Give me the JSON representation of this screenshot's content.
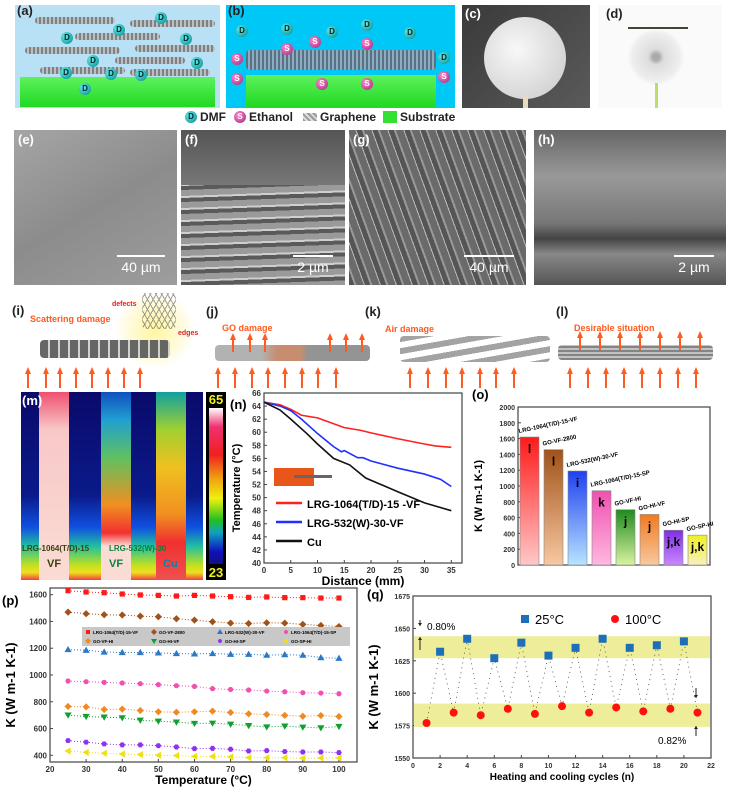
{
  "panel_labels": {
    "a": "(a)",
    "b": "(b)",
    "c": "(c)",
    "d": "(d)",
    "e": "(e)",
    "f": "(f)",
    "g": "(g)",
    "h": "(h)",
    "i": "(i)",
    "j": "(j)",
    "k": "(k)",
    "l": "(l)",
    "m": "(m)",
    "n": "(n)",
    "o": "(o)",
    "p": "(p)",
    "q": "(q)"
  },
  "legend_ab": {
    "dmf": "DMF",
    "ethanol": "Ethanol",
    "graphene": "Graphene",
    "substrate": "Substrate",
    "dmf_symbol": "D",
    "ethanol_symbol": "S"
  },
  "colors": {
    "dmf": "#11a5a5",
    "ethanol": "#c0308c",
    "substrate": "#33e033",
    "arrow": "#ff5a1f"
  },
  "scale_bars": {
    "e": "40 µm",
    "f": "2 µm",
    "g": "40 µm",
    "h": "2 µm"
  },
  "schematics": {
    "i": {
      "title": "Scattering damage",
      "defects": "defects",
      "edges": "edges"
    },
    "j": {
      "title": "GO damage"
    },
    "k": {
      "title": "Air damage"
    },
    "l": {
      "title": "Desirable situation"
    }
  },
  "thermal": {
    "max": "65",
    "min": "23",
    "colorbar_label": "Temperature (°C)",
    "sample1_line1": "LRG-1064(T/D)-15",
    "sample1_line2": "VF",
    "sample2_line1": "LRG-532(W)-30",
    "sample2_line2": "VF",
    "sample3": "Cu"
  },
  "chart_data": [
    {
      "id": "n",
      "type": "line",
      "xlabel": "Distance (mm)",
      "ylabel": "Temperature (°C)",
      "xlim": [
        0,
        37
      ],
      "ylim": [
        40,
        66
      ],
      "xticks": [
        0,
        5,
        10,
        15,
        20,
        25,
        30,
        35
      ],
      "yticks": [
        40,
        42,
        44,
        46,
        48,
        50,
        52,
        54,
        56,
        58,
        60,
        62,
        64,
        66
      ],
      "legend_position": "bottom-left",
      "series": [
        {
          "name": "LRG-1064(T/D)-15 -VF",
          "color": "#ff2020",
          "x": [
            0,
            3,
            5,
            7,
            10,
            15,
            18,
            20,
            25,
            30,
            32,
            35
          ],
          "y": [
            64.6,
            64.2,
            63.5,
            62.6,
            62.2,
            60.7,
            60.3,
            59.9,
            59,
            58.2,
            57.9,
            57.7
          ]
        },
        {
          "name": "LRG-532(W)-30-VF",
          "color": "#2030ff",
          "x": [
            0,
            3,
            5,
            7,
            10,
            13,
            14.5,
            15,
            17.5,
            18.5,
            20,
            25,
            30,
            33,
            35
          ],
          "y": [
            64.6,
            64,
            63.3,
            62,
            59.8,
            57.8,
            57,
            57.2,
            56.1,
            56.1,
            55.6,
            54.5,
            53.6,
            52.8,
            51.7
          ]
        },
        {
          "name": "Cu",
          "color": "#111111",
          "x": [
            0,
            3,
            5,
            8,
            10,
            13,
            16,
            19,
            25,
            30,
            35
          ],
          "y": [
            64.6,
            63.4,
            62,
            59.8,
            58.2,
            56,
            55,
            53,
            50.9,
            49.2,
            48
          ]
        }
      ]
    },
    {
      "id": "o",
      "type": "bar",
      "ylabel": "K (W m-1 K-1)",
      "ylim": [
        0,
        2000
      ],
      "yticks": [
        0,
        200,
        400,
        600,
        800,
        1000,
        1200,
        1400,
        1600,
        1800,
        2000
      ],
      "categories": [
        "LRG-1064(T/D)-15-VF",
        "GO-VF-2800",
        "LRG-532(W)-30-VF",
        "LRG-1064(T/D)-15-SP",
        "GO-VF-HI",
        "GO-HI-VF",
        "GO-HI-SP",
        "GO-SP-HI"
      ],
      "values": [
        1620,
        1460,
        1190,
        940,
        700,
        640,
        440,
        378
      ],
      "letters": [
        "l",
        "l",
        "i",
        "k",
        "j",
        "j",
        "j,k",
        "j,k"
      ],
      "colors": [
        "#ff1a1a",
        "#a0521a",
        "#2040f0",
        "#f050b0",
        "#208a20",
        "#f07a20",
        "#8030e0",
        "#f0f020"
      ],
      "light_colors": [
        "#ffc8c8",
        "#f8c8a0",
        "#b8e4ff",
        "#ffb8e0",
        "#d8f4a0",
        "#f8c8a0",
        "#c888ff",
        "#f8f0c0"
      ]
    },
    {
      "id": "p",
      "type": "scatter",
      "xlabel": "Temperature (°C)",
      "ylabel": "K (W m-1 K-1)",
      "xlim": [
        20,
        105
      ],
      "ylim": [
        350,
        1650
      ],
      "xticks": [
        20,
        30,
        40,
        50,
        60,
        70,
        80,
        90,
        100
      ],
      "yticks": [
        400,
        600,
        800,
        1000,
        1200,
        1400,
        1600
      ],
      "legend_position": "center",
      "x": [
        25,
        30,
        35,
        40,
        45,
        50,
        55,
        60,
        65,
        70,
        75,
        80,
        85,
        90,
        95,
        100
      ],
      "series": [
        {
          "name": "LRG-1064(T/D)-15-VF",
          "color": "#ff1a1a",
          "marker": "square",
          "values": [
            1630,
            1620,
            1615,
            1605,
            1598,
            1595,
            1590,
            1595,
            1590,
            1585,
            1580,
            1583,
            1578,
            1578,
            1575,
            1575
          ]
        },
        {
          "name": "GO-VF-2800",
          "color": "#a0521a",
          "marker": "diamond",
          "values": [
            1470,
            1458,
            1450,
            1448,
            1440,
            1435,
            1420,
            1410,
            1398,
            1388,
            1385,
            1390,
            1388,
            1378,
            1370,
            1362
          ]
        },
        {
          "name": "LRG-532(W)-30-VF",
          "color": "#2a78c8",
          "marker": "triangle-up",
          "values": [
            1190,
            1185,
            1172,
            1168,
            1168,
            1165,
            1160,
            1158,
            1160,
            1155,
            1155,
            1148,
            1152,
            1148,
            1130,
            1125
          ]
        },
        {
          "name": "LRG-1064(T/D)-15-SP",
          "color": "#f050b0",
          "marker": "circle",
          "values": [
            955,
            950,
            945,
            940,
            935,
            928,
            920,
            915,
            898,
            892,
            888,
            880,
            875,
            868,
            865,
            860
          ]
        },
        {
          "name": "GO-VF-HI",
          "color": "#f08a20",
          "marker": "diamond",
          "values": [
            765,
            762,
            742,
            745,
            735,
            725,
            722,
            725,
            730,
            720,
            710,
            705,
            698,
            692,
            697,
            690
          ]
        },
        {
          "name": "GO-HI-VF",
          "color": "#10a030",
          "marker": "triangle-down",
          "values": [
            700,
            690,
            685,
            680,
            662,
            655,
            648,
            638,
            640,
            632,
            622,
            612,
            618,
            610,
            605,
            615
          ]
        },
        {
          "name": "GO-HI-SP",
          "color": "#9030f0",
          "marker": "hexagon",
          "values": [
            510,
            498,
            485,
            478,
            478,
            472,
            462,
            450,
            452,
            445,
            432,
            435,
            428,
            425,
            425,
            420
          ]
        },
        {
          "name": "GO-SP-HI",
          "color": "#f0e010",
          "marker": "triangle-left",
          "values": [
            432,
            422,
            415,
            410,
            405,
            400,
            398,
            392,
            392,
            388,
            383,
            382,
            382,
            378,
            380,
            380
          ]
        }
      ]
    },
    {
      "id": "q",
      "type": "scatter",
      "xlabel": "Heating and cooling cycles (n)",
      "ylabel": "K (W m-1 K-1)",
      "xlim": [
        0,
        22
      ],
      "ylim": [
        1550,
        1675
      ],
      "xticks": [
        0,
        2,
        4,
        6,
        8,
        10,
        12,
        14,
        16,
        18,
        20,
        22
      ],
      "yticks": [
        1550,
        1575,
        1600,
        1625,
        1650,
        1675
      ],
      "legend_position": "top",
      "bands": [
        [
          1627,
          1644
        ],
        [
          1574,
          1592
        ]
      ],
      "annotations": [
        "0.80%",
        "0.82%"
      ],
      "series": [
        {
          "name": "25°C",
          "color": "#1f6fb8",
          "marker": "square",
          "x": [
            2,
            4,
            6,
            8,
            10,
            12,
            14,
            16,
            18,
            20
          ],
          "values": [
            1632,
            1642,
            1627,
            1639,
            1629,
            1635,
            1642,
            1635,
            1637,
            1640
          ]
        },
        {
          "name": "100°C",
          "color": "#ff1010",
          "marker": "circle",
          "x": [
            1,
            3,
            5,
            7,
            9,
            11,
            13,
            15,
            17,
            19,
            21
          ],
          "values": [
            1577,
            1585,
            1583,
            1588,
            1584,
            1590,
            1585,
            1589,
            1586,
            1588,
            1585
          ]
        }
      ]
    }
  ]
}
